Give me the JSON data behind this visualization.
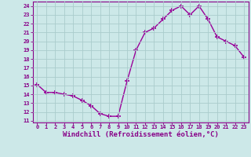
{
  "x": [
    0,
    1,
    2,
    3,
    4,
    5,
    6,
    7,
    8,
    9,
    10,
    11,
    12,
    13,
    14,
    15,
    16,
    17,
    18,
    19,
    20,
    21,
    22,
    23
  ],
  "y": [
    15.1,
    14.2,
    14.2,
    14.0,
    13.8,
    13.3,
    12.7,
    11.8,
    11.5,
    11.5,
    15.5,
    19.0,
    21.0,
    21.5,
    22.5,
    23.5,
    24.0,
    23.0,
    24.0,
    22.5,
    20.5,
    20.0,
    19.5,
    18.2
  ],
  "line_color": "#990099",
  "marker": "+",
  "markersize": 4,
  "linewidth": 1.0,
  "bg_color": "#cce8e8",
  "grid_color": "#aacccc",
  "xlabel": "Windchill (Refroidissement éolien,°C)",
  "xlabel_fontsize": 6.5,
  "xtick_labels": [
    "0",
    "1",
    "2",
    "3",
    "4",
    "5",
    "6",
    "7",
    "8",
    "9",
    "10",
    "11",
    "12",
    "13",
    "14",
    "15",
    "16",
    "17",
    "18",
    "19",
    "20",
    "21",
    "22",
    "23"
  ],
  "ytick_min": 11,
  "ytick_max": 24,
  "ytick_step": 1,
  "xlim": [
    -0.5,
    23.5
  ],
  "ylim": [
    10.8,
    24.5
  ],
  "spine_color": "#880088",
  "tick_color": "#880088",
  "label_color": "#880088"
}
